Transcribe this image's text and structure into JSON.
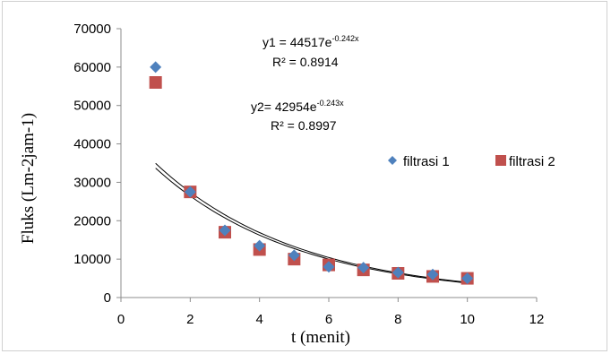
{
  "chart_data": {
    "type": "scatter",
    "xlabel": "t (menit)",
    "ylabel": "Fluks (Lm-2jam-1)",
    "xlim": [
      0,
      12
    ],
    "ylim": [
      0,
      70000
    ],
    "x_ticks": [
      "0",
      "2",
      "4",
      "6",
      "8",
      "10",
      "12"
    ],
    "y_ticks": [
      "0",
      "10000",
      "20000",
      "30000",
      "40000",
      "50000",
      "60000",
      "70000"
    ],
    "grid": false,
    "legend_position": "right",
    "series": [
      {
        "name": "filtrasi 1",
        "marker": "diamond",
        "color": "#4f81bd",
        "x": [
          1,
          2,
          3,
          4,
          5,
          6,
          7,
          8,
          9,
          10
        ],
        "y": [
          60000,
          27500,
          17500,
          13500,
          11000,
          8000,
          7800,
          6500,
          6000,
          5000
        ]
      },
      {
        "name": "filtrasi 2",
        "marker": "square",
        "color": "#c0504d",
        "x": [
          1,
          2,
          3,
          4,
          5,
          6,
          7,
          8,
          9,
          10
        ],
        "y": [
          56000,
          27500,
          17000,
          12500,
          10000,
          8500,
          7200,
          6300,
          5500,
          5000
        ]
      }
    ],
    "trendlines": [
      {
        "type": "exponential",
        "a": 44517,
        "b": -0.242,
        "x_range": [
          1,
          10
        ],
        "color": "#000000"
      },
      {
        "type": "exponential",
        "a": 42954,
        "b": -0.243,
        "x_range": [
          1,
          10
        ],
        "color": "#000000"
      }
    ],
    "annotations": [
      {
        "eq_base": "y1 = 44517e",
        "eq_exp": "-0.242x",
        "r2": "R² = 0.8914"
      },
      {
        "eq_base": "y2= 42954e",
        "eq_exp": "-0.243x",
        "r2": "R² = 0.8997"
      }
    ]
  }
}
